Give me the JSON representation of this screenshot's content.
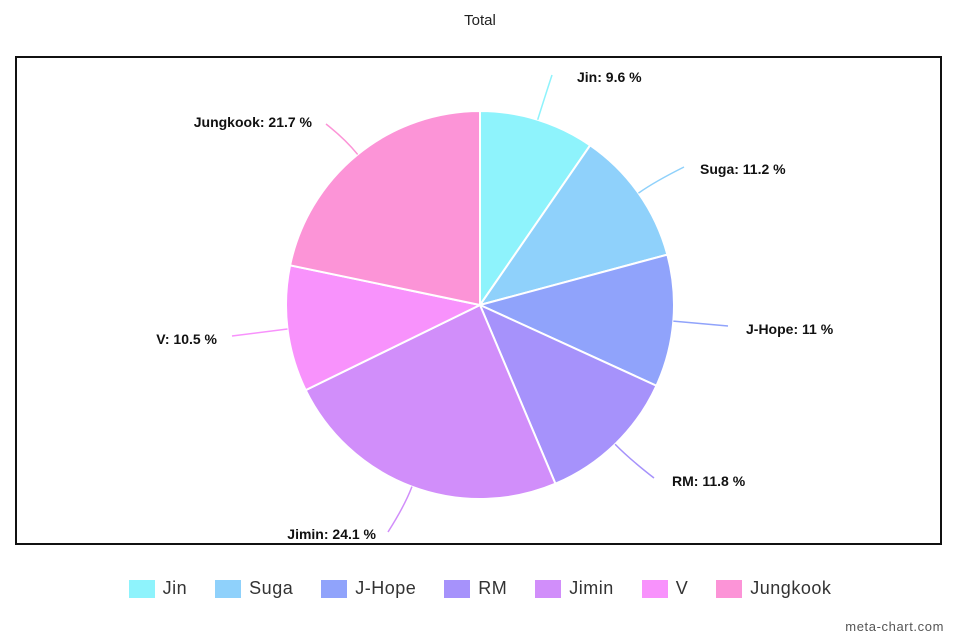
{
  "chart_data": {
    "type": "pie",
    "title": "Total",
    "slices": [
      {
        "name": "Jin",
        "value": 9.6,
        "label": "Jin: 9.6 %",
        "color": "#8ef3fc"
      },
      {
        "name": "Suga",
        "value": 11.2,
        "label": "Suga: 11.2 %",
        "color": "#8fd1fb"
      },
      {
        "name": "J-Hope",
        "value": 11,
        "label": "J-Hope: 11 %",
        "color": "#90a3fb"
      },
      {
        "name": "RM",
        "value": 11.8,
        "label": "RM: 11.8 %",
        "color": "#a692fb"
      },
      {
        "name": "Jimin",
        "value": 24.1,
        "label": "Jimin: 24.1 %",
        "color": "#d18efa"
      },
      {
        "name": "V",
        "value": 10.5,
        "label": "V: 10.5 %",
        "color": "#f892fc"
      },
      {
        "name": "Jungkook",
        "value": 21.7,
        "label": "Jungkook: 21.7 %",
        "color": "#fc94d7"
      }
    ],
    "legend_position": "bottom",
    "start_angle": "top",
    "direction": "clockwise"
  },
  "watermark": "meta-chart.com"
}
